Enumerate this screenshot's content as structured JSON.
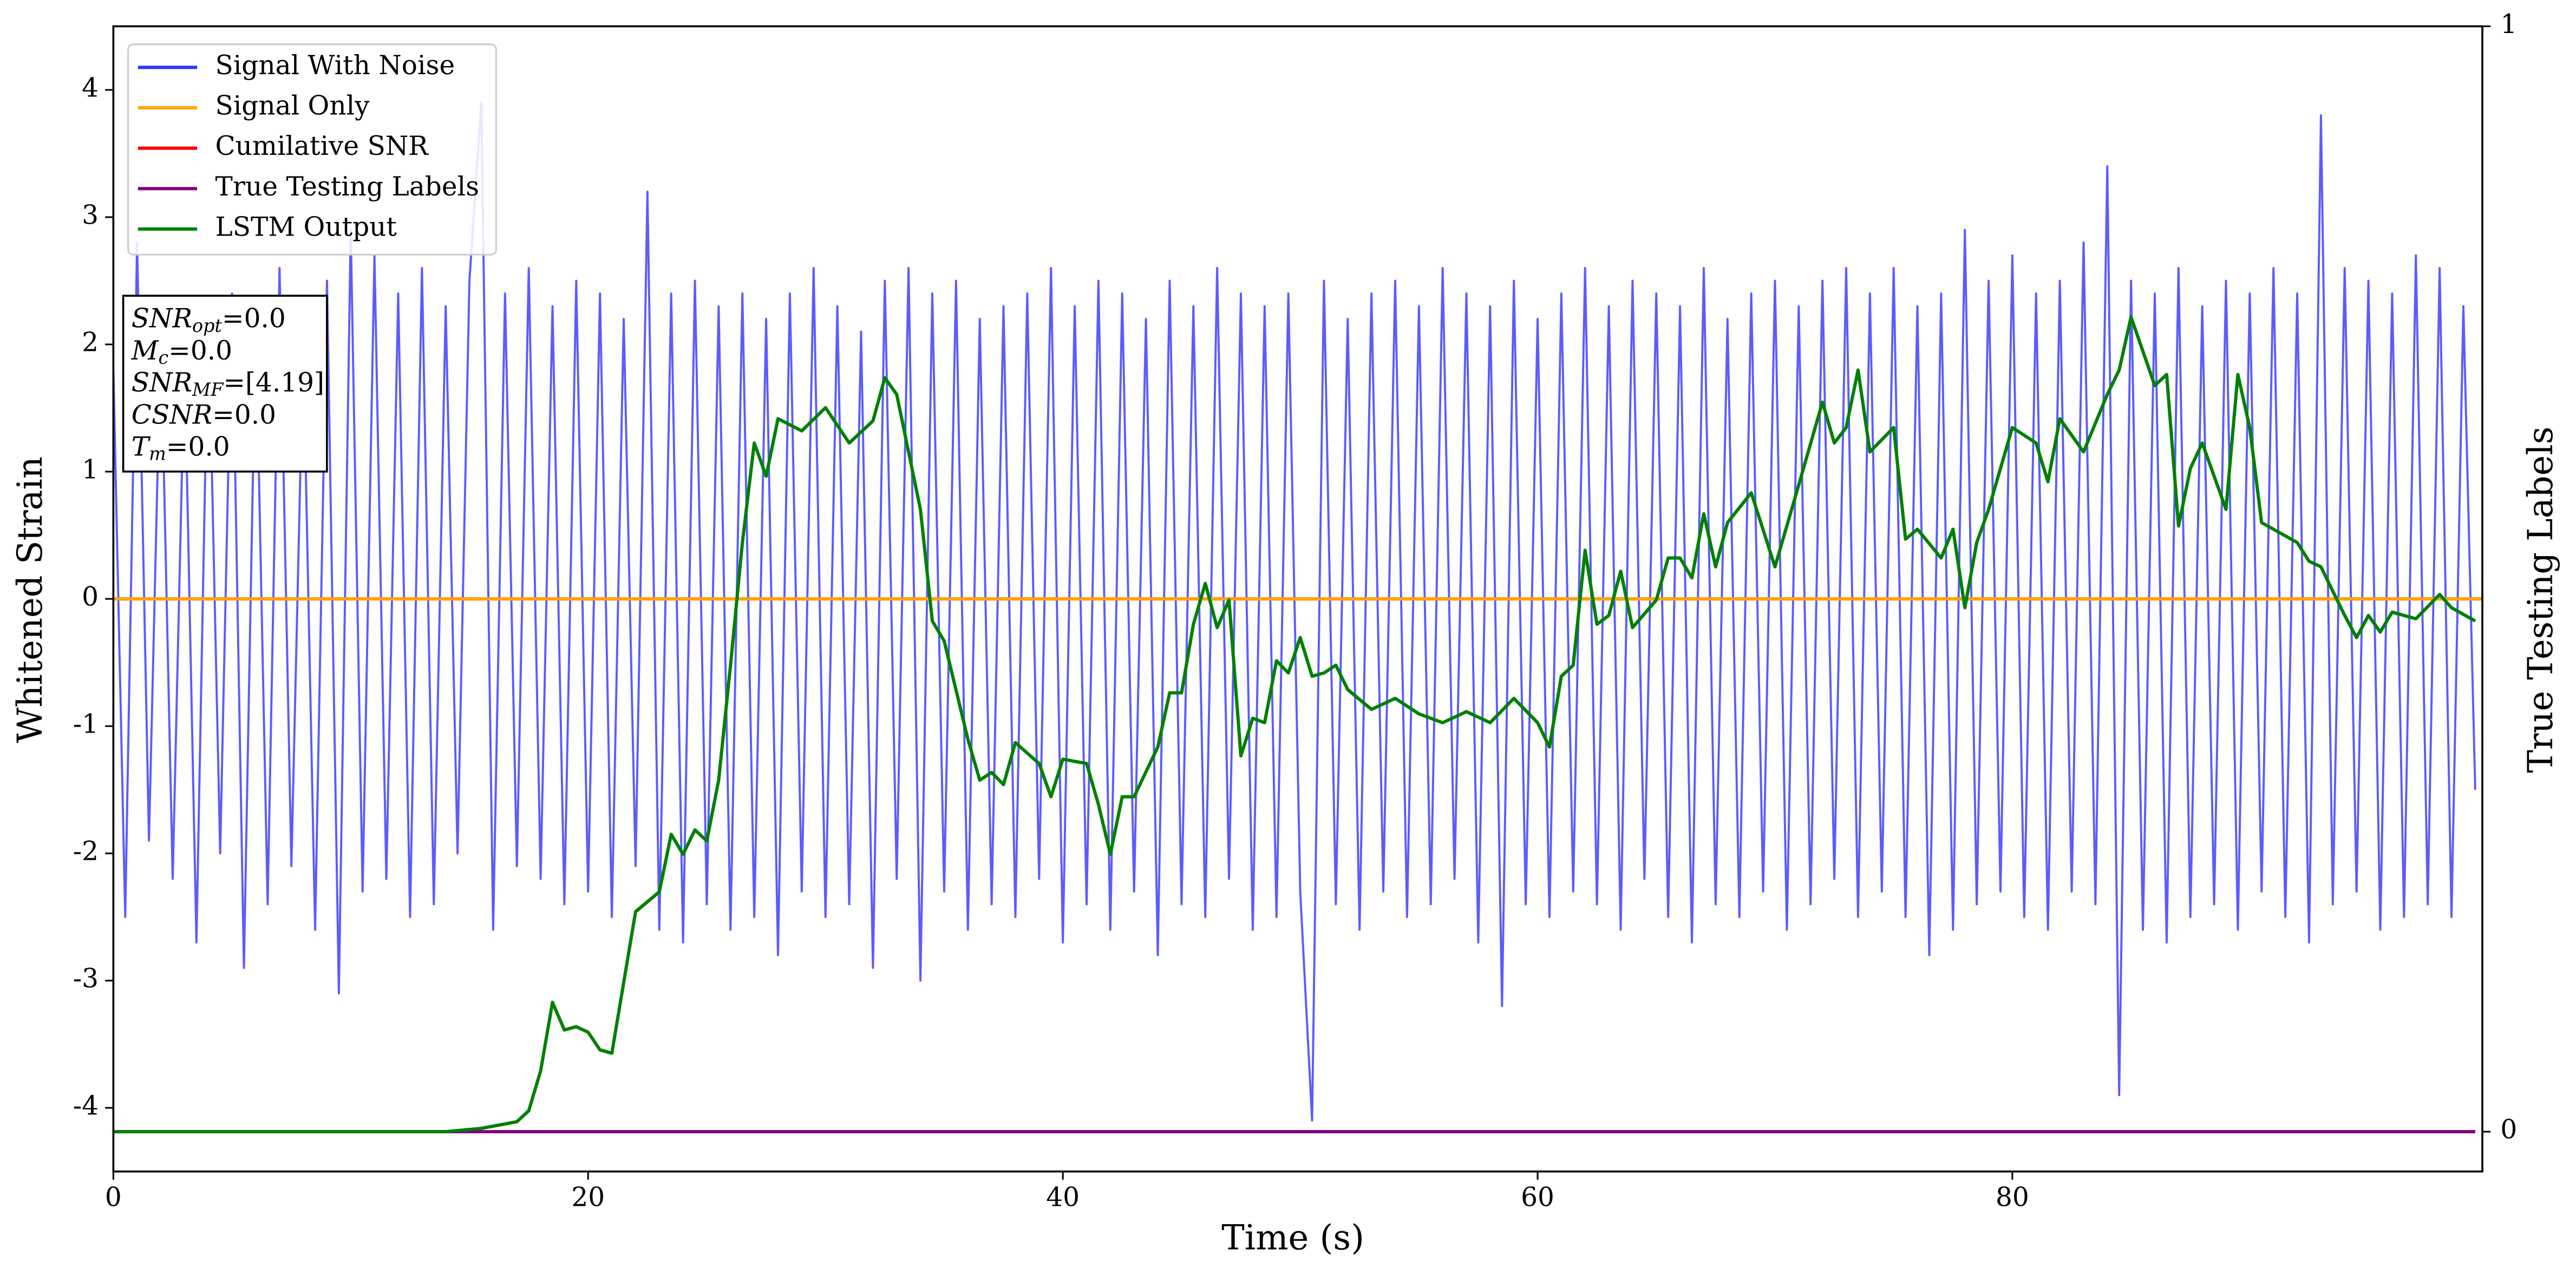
{
  "chart_data": {
    "type": "line",
    "xlabel": "Time (s)",
    "ylabel": "Whitened Strain",
    "y2label": "True Testing Labels",
    "xlim": [
      0,
      99.8
    ],
    "ylim": [
      -4.5,
      4.5
    ],
    "y2lim": [
      -0.036,
      1
    ],
    "xticks": [
      0,
      20,
      40,
      60,
      80
    ],
    "yticks": [
      -4,
      -3,
      -2,
      -1,
      0,
      1,
      2,
      3,
      4
    ],
    "y2ticks": [
      0,
      1
    ],
    "legend": "upper left",
    "annotation": [
      {
        "base": "SNR",
        "sub": "opt",
        "rest": "=0.0"
      },
      {
        "base": "M",
        "sub": "c",
        "rest": "=0.0"
      },
      {
        "base": "SNR",
        "sub": "MF",
        "rest": "=[4.19]"
      },
      {
        "base": "CSNR",
        "rest": "=0.0"
      },
      {
        "base": "T",
        "sub": "m",
        "rest": "=0.0"
      }
    ],
    "series": [
      {
        "name": "Signal With Noise",
        "color": "#3333ff",
        "x": [
          0,
          0.5,
          1,
          1.5,
          2,
          2.5,
          3,
          3.5,
          4,
          4.5,
          5,
          5.5,
          6,
          6.5,
          7,
          7.5,
          8,
          8.5,
          9,
          9.5,
          10,
          10.5,
          11,
          11.5,
          12,
          12.5,
          13,
          13.5,
          14,
          14.5,
          15,
          15.5,
          16,
          16.5,
          17,
          17.5,
          18,
          18.5,
          19,
          19.5,
          20,
          20.5,
          21,
          21.5,
          22,
          22.5,
          23,
          23.5,
          24,
          24.5,
          25,
          25.5,
          26,
          26.5,
          27,
          27.5,
          28,
          28.5,
          29,
          29.5,
          30,
          30.5,
          31,
          31.5,
          32,
          32.5,
          33,
          33.5,
          34,
          34.5,
          35,
          35.5,
          36,
          36.5,
          37,
          37.5,
          38,
          38.5,
          39,
          39.5,
          40,
          40.5,
          41,
          41.5,
          42,
          42.5,
          43,
          43.5,
          44,
          44.5,
          45,
          45.5,
          46,
          46.5,
          47,
          47.5,
          48,
          48.5,
          49,
          49.5,
          50,
          50.5,
          51,
          51.5,
          52,
          52.5,
          53,
          53.5,
          54,
          54.5,
          55,
          55.5,
          56,
          56.5,
          57,
          57.5,
          58,
          58.5,
          59,
          59.5,
          60,
          60.5,
          61,
          61.5,
          62,
          62.5,
          63,
          63.5,
          64,
          64.5,
          65,
          65.5,
          66,
          66.5,
          67,
          67.5,
          68,
          68.5,
          69,
          69.5,
          70,
          70.5,
          71,
          71.5,
          72,
          72.5,
          73,
          73.5,
          74,
          74.5,
          75,
          75.5,
          76,
          76.5,
          77,
          77.5,
          78,
          78.5,
          79,
          79.5,
          80,
          80.5,
          81,
          81.5,
          82,
          82.5,
          83,
          83.5,
          84,
          84.5,
          85,
          85.5,
          86,
          86.5,
          87,
          87.5,
          88,
          88.5,
          89,
          89.5,
          90,
          90.5,
          91,
          91.5,
          92,
          92.5,
          93,
          93.5,
          94,
          94.5,
          95,
          95.5,
          96,
          96.5,
          97,
          97.5,
          98,
          98.5,
          99,
          99.5
        ],
        "values": [
          1.8,
          -2.5,
          2.8,
          -1.9,
          2.1,
          -2.2,
          1.9,
          -2.7,
          2.3,
          -2.0,
          2.4,
          -2.9,
          2.2,
          -2.4,
          2.6,
          -2.1,
          2.0,
          -2.6,
          2.5,
          -3.1,
          2.9,
          -2.3,
          2.7,
          -2.2,
          2.4,
          -2.5,
          2.6,
          -2.4,
          2.3,
          -2.0,
          2.5,
          3.9,
          -2.6,
          2.4,
          -2.1,
          2.6,
          -2.2,
          2.3,
          -2.4,
          2.5,
          -2.3,
          2.4,
          -2.5,
          2.2,
          -2.1,
          3.2,
          -2.6,
          2.4,
          -2.7,
          2.5,
          -2.4,
          2.3,
          -2.6,
          2.4,
          -2.5,
          2.2,
          -2.8,
          2.4,
          -2.3,
          2.6,
          -2.5,
          2.3,
          -2.4,
          2.1,
          -2.9,
          2.5,
          -2.2,
          2.6,
          -3.0,
          2.4,
          -2.3,
          2.5,
          -2.6,
          2.2,
          -2.4,
          2.3,
          -2.5,
          2.4,
          -2.2,
          2.6,
          -2.7,
          2.3,
          -2.4,
          2.5,
          -2.6,
          2.4,
          -2.3,
          2.2,
          -2.8,
          2.5,
          -2.4,
          2.3,
          -2.5,
          2.6,
          -2.2,
          2.4,
          -2.6,
          2.3,
          -2.5,
          2.4,
          -2.3,
          -4.1,
          2.5,
          -2.4,
          2.2,
          -2.6,
          2.4,
          -2.3,
          2.5,
          -2.5,
          2.3,
          -2.4,
          2.6,
          -2.2,
          2.4,
          -2.7,
          2.3,
          -3.2,
          2.5,
          -2.4,
          2.2,
          -2.5,
          2.4,
          -2.3,
          2.6,
          -2.4,
          2.3,
          -2.6,
          2.5,
          -2.2,
          2.4,
          -2.5,
          2.3,
          -2.7,
          2.6,
          -2.4,
          2.2,
          -2.5,
          2.4,
          -2.3,
          2.5,
          -2.6,
          2.3,
          -2.4,
          2.5,
          -2.2,
          2.6,
          -2.5,
          2.4,
          -2.3,
          2.6,
          -2.5,
          2.3,
          -2.8,
          2.4,
          -2.6,
          2.9,
          -2.4,
          2.5,
          -2.3,
          2.7,
          -2.5,
          2.4,
          -2.6,
          2.5,
          -2.3,
          2.8,
          -2.4,
          3.4,
          -3.9,
          2.5,
          -2.6,
          2.4,
          -2.7,
          2.6,
          -2.5,
          2.3,
          -2.4,
          2.5,
          -2.6,
          2.4,
          -2.3,
          2.6,
          -2.5,
          2.4,
          -2.7,
          3.8,
          -2.4,
          2.6,
          -2.3,
          2.5,
          -2.6,
          2.4,
          -2.5,
          2.7,
          -2.4,
          2.6,
          -2.5,
          2.3,
          -1.5
        ]
      },
      {
        "name": "Signal Only",
        "color": "#ffa500",
        "x": [
          0,
          99.8
        ],
        "values": [
          0,
          0
        ]
      },
      {
        "name": "Cumilative SNR",
        "color": "#ff0000",
        "x": [
          0,
          99.8
        ],
        "values": [
          0,
          0
        ]
      },
      {
        "name": "True Testing Labels",
        "color": "#800080",
        "axis": "y2",
        "x": [
          0,
          99.5
        ],
        "values": [
          0,
          0
        ]
      },
      {
        "name": "LSTM Output",
        "color": "#008000",
        "axis": "y2",
        "x": [
          0,
          14,
          15.5,
          16.5,
          17,
          17.5,
          18,
          18.5,
          19,
          19.5,
          20,
          20.5,
          21,
          21.5,
          22,
          22.5,
          23,
          23.5,
          24,
          24.5,
          25,
          25.5,
          26,
          26.5,
          27,
          27.5,
          28,
          29,
          30,
          31,
          32,
          32.5,
          33,
          34,
          34.5,
          35,
          36,
          36.5,
          37,
          37.5,
          38,
          39,
          39.5,
          40,
          41,
          41.5,
          42,
          42.5,
          43,
          44,
          44.5,
          45,
          45.5,
          46,
          46.5,
          47,
          47.5,
          48,
          48.5,
          49,
          49.5,
          50,
          50.5,
          51,
          51.5,
          52,
          53,
          54,
          55,
          56,
          57,
          58,
          59,
          60,
          60.5,
          61,
          61.5,
          62,
          62.5,
          63,
          63.5,
          64,
          65,
          65.5,
          66,
          66.5,
          67,
          67.5,
          68,
          69,
          70,
          71,
          72,
          72.5,
          73,
          73.5,
          74,
          75,
          75.5,
          76,
          77,
          77.5,
          78,
          78.5,
          79,
          80,
          81,
          81.5,
          82,
          83,
          84,
          84.5,
          85,
          86,
          86.5,
          87,
          87.5,
          88,
          89,
          89.5,
          90,
          90.5,
          91,
          92,
          92.5,
          93,
          94,
          94.5,
          95,
          95.5,
          96,
          97,
          98,
          98.5,
          99.5
        ],
        "values": [
          0,
          0,
          0.003,
          0.007,
          0.009,
          0.019,
          0.055,
          0.117,
          0.092,
          0.095,
          0.09,
          0.074,
          0.071,
          0.135,
          0.199,
          0.208,
          0.217,
          0.269,
          0.251,
          0.273,
          0.263,
          0.318,
          0.422,
          0.533,
          0.623,
          0.593,
          0.645,
          0.634,
          0.655,
          0.623,
          0.643,
          0.682,
          0.667,
          0.563,
          0.462,
          0.444,
          0.355,
          0.318,
          0.325,
          0.314,
          0.352,
          0.333,
          0.303,
          0.337,
          0.333,
          0.296,
          0.251,
          0.303,
          0.303,
          0.348,
          0.397,
          0.397,
          0.459,
          0.496,
          0.456,
          0.481,
          0.34,
          0.374,
          0.37,
          0.426,
          0.415,
          0.447,
          0.412,
          0.415,
          0.422,
          0.4,
          0.382,
          0.392,
          0.378,
          0.37,
          0.38,
          0.37,
          0.392,
          0.37,
          0.348,
          0.412,
          0.422,
          0.526,
          0.459,
          0.467,
          0.507,
          0.456,
          0.481,
          0.519,
          0.519,
          0.501,
          0.559,
          0.511,
          0.551,
          0.578,
          0.511,
          0.585,
          0.66,
          0.623,
          0.637,
          0.689,
          0.615,
          0.637,
          0.536,
          0.545,
          0.519,
          0.545,
          0.474,
          0.533,
          0.563,
          0.637,
          0.623,
          0.588,
          0.645,
          0.615,
          0.667,
          0.689,
          0.737,
          0.675,
          0.685,
          0.548,
          0.6,
          0.623,
          0.563,
          0.685,
          0.637,
          0.551,
          0.545,
          0.533,
          0.516,
          0.511,
          0.467,
          0.447,
          0.467,
          0.452,
          0.47,
          0.464,
          0.486,
          0.474,
          0.462
        ]
      }
    ]
  }
}
